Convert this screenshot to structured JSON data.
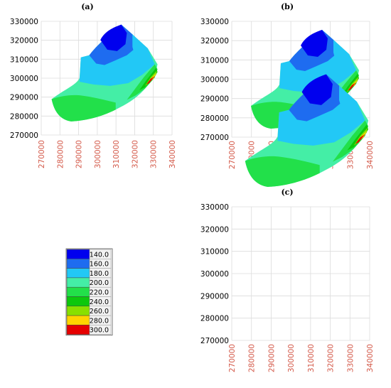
{
  "panels": [
    {
      "label": "(a)",
      "y_ticks": [
        "330000",
        "320000",
        "310000",
        "300000",
        "290000",
        "280000",
        "270000"
      ],
      "x_ticks": [
        "270000",
        "280000",
        "290000",
        "300000",
        "310000",
        "320000",
        "330000",
        "340000"
      ]
    },
    {
      "label": "(b)",
      "y_ticks": [
        "330000",
        "320000",
        "310000",
        "300000",
        "290000",
        "280000",
        "270000"
      ],
      "x_ticks": [
        "270000",
        "280000",
        "290000",
        "300000",
        "310000",
        "320000",
        "330000",
        "340000"
      ]
    },
    {
      "label": "(c)",
      "y_ticks": [
        "330000",
        "320000",
        "310000",
        "300000",
        "290000",
        "280000",
        "270000"
      ],
      "x_ticks": [
        "270000",
        "280000",
        "290000",
        "300000",
        "310000",
        "320000",
        "330000",
        "340000"
      ]
    }
  ],
  "legend": {
    "entries": [
      {
        "value": "140.0",
        "color": "#0000ee"
      },
      {
        "value": "160.0",
        "color": "#1e6cf0"
      },
      {
        "value": "180.0",
        "color": "#22c8f6"
      },
      {
        "value": "200.0",
        "color": "#44eea6"
      },
      {
        "value": "220.0",
        "color": "#22e04a"
      },
      {
        "value": "240.0",
        "color": "#0cc80c"
      },
      {
        "value": "260.0",
        "color": "#88e000"
      },
      {
        "value": "280.0",
        "color": "#ffd400"
      },
      {
        "value": "300.0",
        "color": "#e60000"
      }
    ]
  }
}
